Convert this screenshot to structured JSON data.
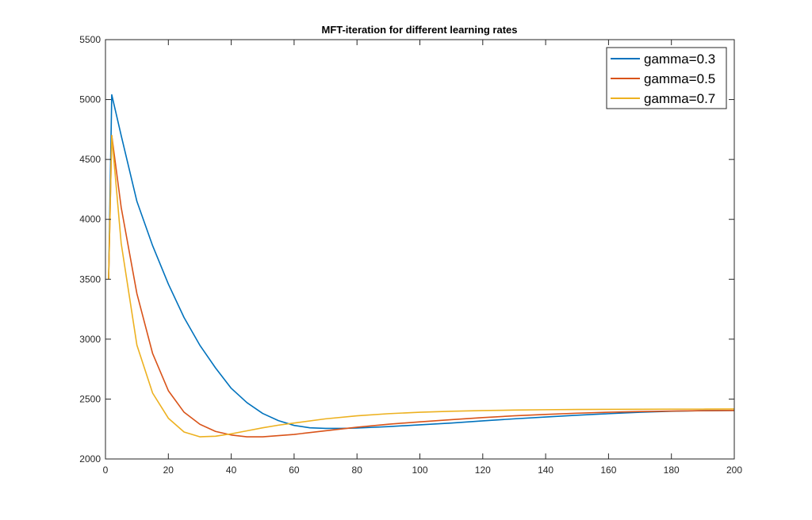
{
  "chart_data": {
    "type": "line",
    "title": "MFT-iteration for different learning rates",
    "xlabel": "",
    "ylabel": "",
    "xlim": [
      0,
      200
    ],
    "ylim": [
      2000,
      5500
    ],
    "xticks": [
      0,
      20,
      40,
      60,
      80,
      100,
      120,
      140,
      160,
      180,
      200
    ],
    "yticks": [
      2000,
      2500,
      3000,
      3500,
      4000,
      4500,
      5000,
      5500
    ],
    "grid": false,
    "legend_position": "top-right",
    "series": [
      {
        "name": "gamma=0.3",
        "color": "#0072BD",
        "x": [
          1,
          2,
          5,
          10,
          15,
          20,
          25,
          30,
          35,
          40,
          45,
          50,
          55,
          60,
          65,
          70,
          75,
          80,
          90,
          100,
          110,
          120,
          130,
          140,
          150,
          160,
          170,
          180,
          190,
          200
        ],
        "y": [
          3500,
          5040,
          4700,
          4150,
          3780,
          3460,
          3180,
          2950,
          2760,
          2590,
          2470,
          2380,
          2320,
          2280,
          2260,
          2255,
          2255,
          2258,
          2270,
          2285,
          2300,
          2318,
          2335,
          2350,
          2365,
          2378,
          2390,
          2398,
          2403,
          2405
        ]
      },
      {
        "name": "gamma=0.5",
        "color": "#D95319",
        "x": [
          1,
          2,
          5,
          10,
          15,
          20,
          25,
          30,
          35,
          40,
          45,
          50,
          55,
          60,
          70,
          80,
          90,
          100,
          110,
          120,
          130,
          140,
          150,
          160,
          170,
          180,
          190,
          200
        ],
        "y": [
          3500,
          4700,
          4100,
          3380,
          2880,
          2570,
          2390,
          2290,
          2230,
          2200,
          2185,
          2185,
          2195,
          2205,
          2235,
          2265,
          2290,
          2310,
          2328,
          2345,
          2360,
          2372,
          2382,
          2390,
          2396,
          2400,
          2403,
          2405
        ]
      },
      {
        "name": "gamma=0.7",
        "color": "#EDB120",
        "x": [
          1,
          2,
          5,
          10,
          15,
          20,
          25,
          30,
          35,
          40,
          45,
          50,
          55,
          60,
          70,
          80,
          90,
          100,
          110,
          120,
          130,
          140,
          150,
          160,
          170,
          180,
          190,
          200
        ],
        "y": [
          3500,
          4700,
          3800,
          2950,
          2550,
          2340,
          2225,
          2185,
          2190,
          2210,
          2235,
          2260,
          2282,
          2300,
          2335,
          2360,
          2378,
          2390,
          2398,
          2404,
          2408,
          2411,
          2413,
          2414,
          2415,
          2416,
          2416,
          2417
        ]
      }
    ]
  }
}
